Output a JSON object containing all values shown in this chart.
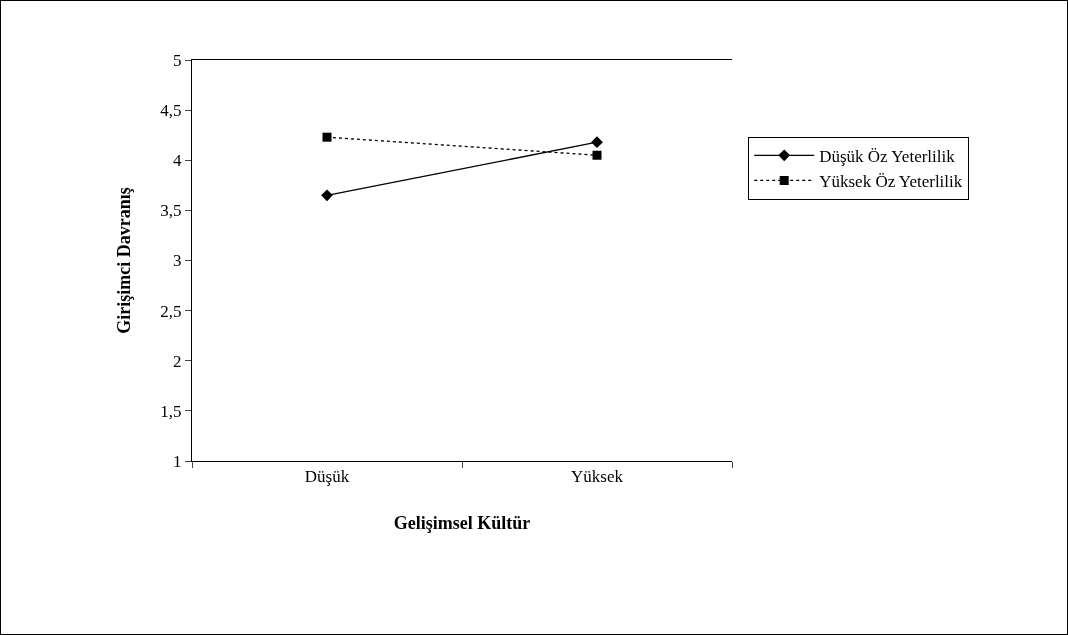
{
  "chart_data": {
    "type": "line",
    "xlabel": "Gelişimsel Kültür",
    "ylabel": "Girişimci Davranış",
    "categories": [
      "Düşük",
      "Yüksek"
    ],
    "series": [
      {
        "name": "Düşük Öz Yeterlilik",
        "color": "#000000",
        "values": [
          3.65,
          4.18
        ],
        "marker": "diamond",
        "line_style": "solid"
      },
      {
        "name": "Yüksek Öz Yeterlilik",
        "color": "#000000",
        "values": [
          4.23,
          4.05
        ],
        "marker": "square",
        "line_style": "dotted"
      }
    ],
    "ylim": [
      1,
      5
    ],
    "yticks": [
      1,
      {
        "value": 1.5,
        "label": "1,5"
      },
      2,
      {
        "value": 2.5,
        "label": "2,5"
      },
      3,
      {
        "value": 3.5,
        "label": "3,5"
      },
      4,
      {
        "value": 4.5,
        "label": "4,5"
      },
      5
    ],
    "grid": false,
    "legend": "right"
  }
}
